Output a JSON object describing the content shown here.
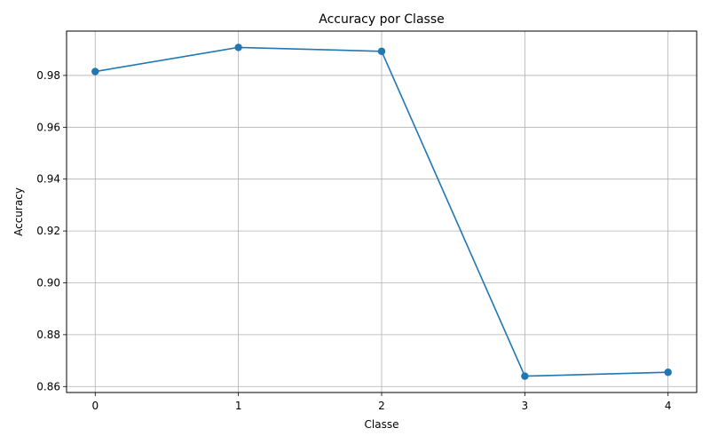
{
  "chart_data": {
    "type": "line",
    "title": "Accuracy por Classe",
    "xlabel": "Classe",
    "ylabel": "Accuracy",
    "x": [
      0,
      1,
      2,
      3,
      4
    ],
    "x_tick_labels": [
      "0",
      "1",
      "2",
      "3",
      "4"
    ],
    "series": [
      {
        "values": [
          0.9815,
          0.9908,
          0.9893,
          0.864,
          0.8655
        ]
      }
    ],
    "y_ticks": [
      0.86,
      0.88,
      0.9,
      0.92,
      0.94,
      0.96,
      0.98
    ],
    "y_tick_labels": [
      "0.86",
      "0.88",
      "0.90",
      "0.92",
      "0.94",
      "0.96",
      "0.98"
    ],
    "xlim": [
      -0.2,
      4.2
    ],
    "ylim": [
      0.8577,
      0.9971
    ],
    "grid": true,
    "marker": "circle",
    "line_color": "#1f77b4"
  }
}
